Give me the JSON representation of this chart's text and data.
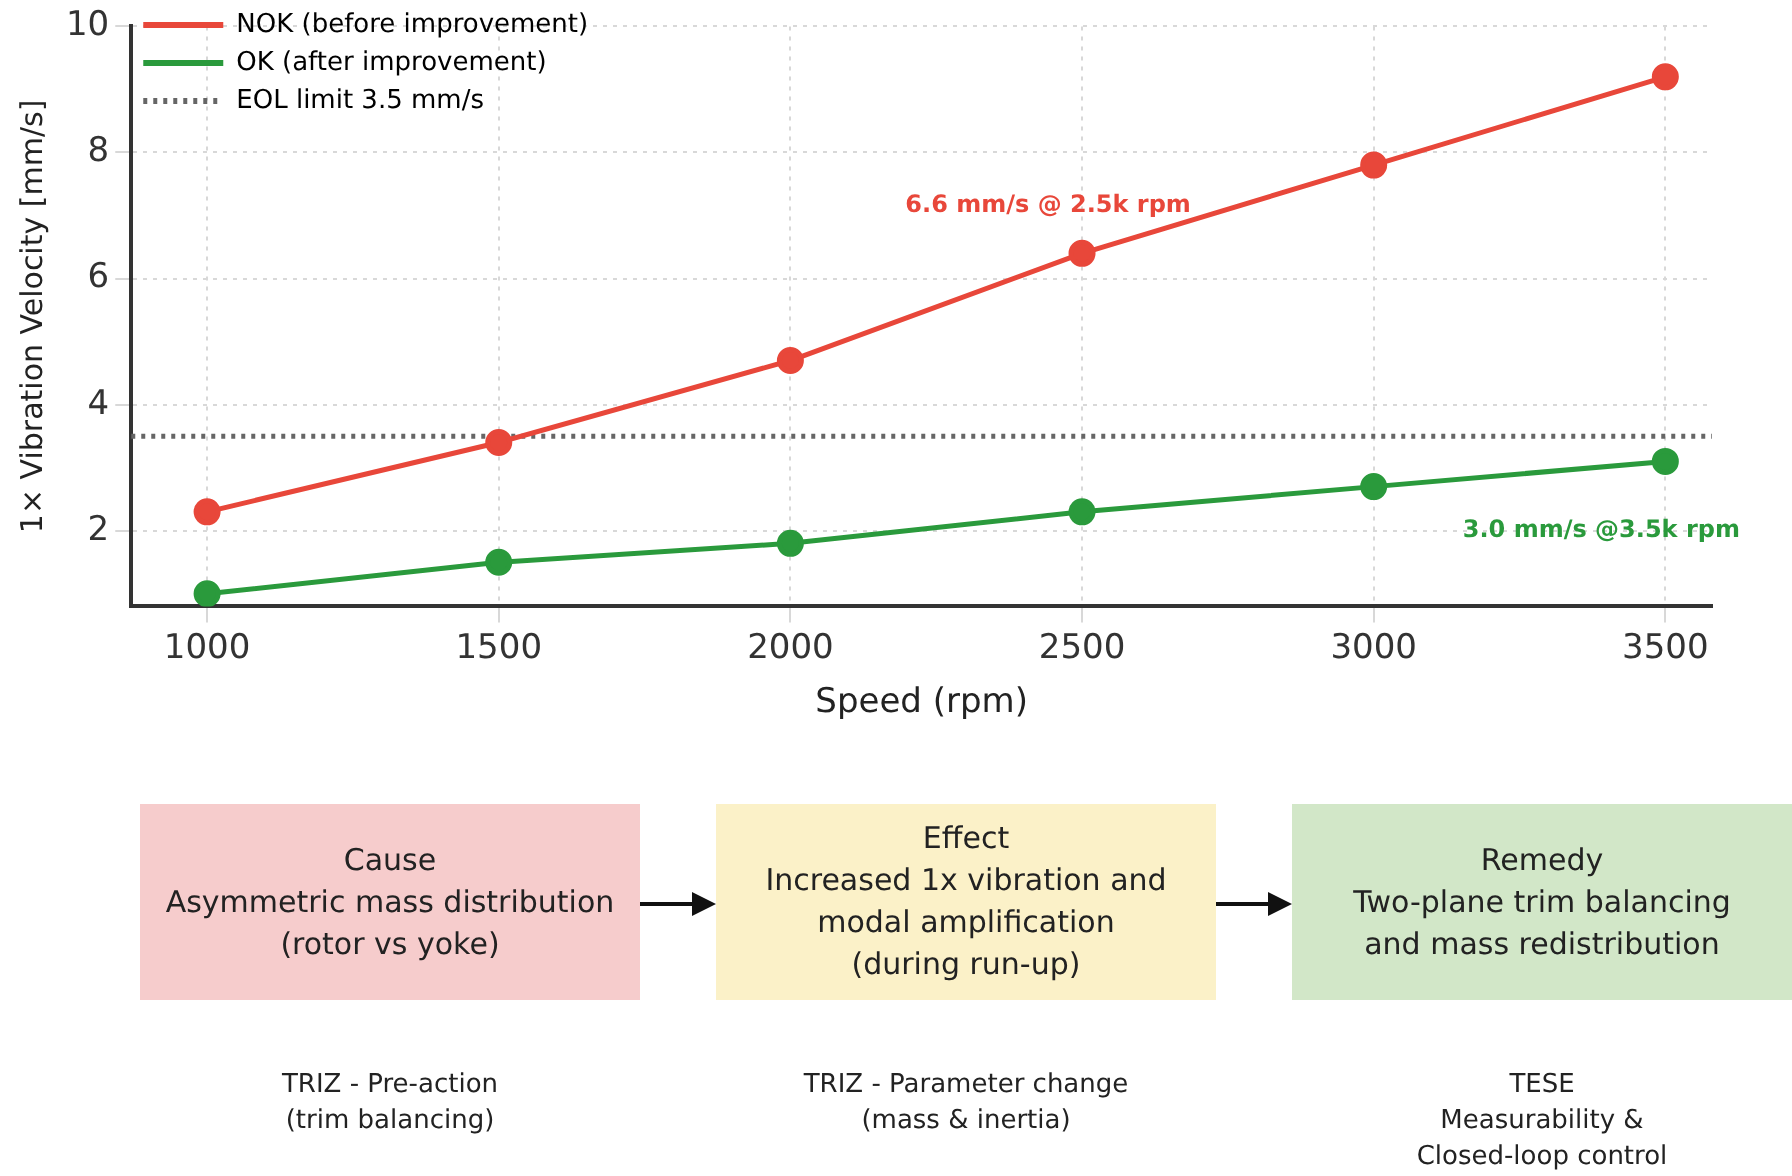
{
  "chart_data": {
    "type": "line",
    "xlabel": "Speed (rpm)",
    "ylabel": "1× Vibration Velocity [mm/s]",
    "x": [
      1000,
      1500,
      2000,
      2500,
      3000,
      3500
    ],
    "series": [
      {
        "name": "NOK (before improvement)",
        "color": "#e8473a",
        "values": [
          2.3,
          3.4,
          4.7,
          6.4,
          7.8,
          9.2
        ]
      },
      {
        "name": "OK (after improvement)",
        "color": "#2a9a3c",
        "values": [
          1.0,
          1.5,
          1.8,
          2.3,
          2.7,
          3.1
        ]
      }
    ],
    "ref_lines": [
      {
        "axis": "y",
        "value": 3.5,
        "label": "EOL limit 3.5 mm/s",
        "color": "#666666",
        "line_style": "dotted"
      }
    ],
    "xlim": [
      870,
      3580
    ],
    "xticks": [
      1000,
      1500,
      2000,
      2500,
      3000,
      3500
    ],
    "ylim": [
      0.8,
      10
    ],
    "yticks": [
      2,
      4,
      6,
      8,
      10
    ],
    "grid": true,
    "legend": "top left",
    "marker": "circle",
    "line_style": "solid",
    "annotations": [
      "6.6 mm/s @ 2.5k rpm",
      "3.0 mm/s @3.5k rpm",
      "Cause\nAsymmetric mass distribution\n(rotor vs yoke)",
      "Effect\nIncreased 1x vibration and\nmodal amplification\n(during run-up)",
      "Remedy\nTwo-plane trim balancing\nand mass redistribution",
      "TRIZ - Pre-action\n(trim balancing)",
      "TRIZ - Parameter change\n(mass & inertia)",
      "TESE\nMeasurability &\nClosed-loop control"
    ]
  }
}
